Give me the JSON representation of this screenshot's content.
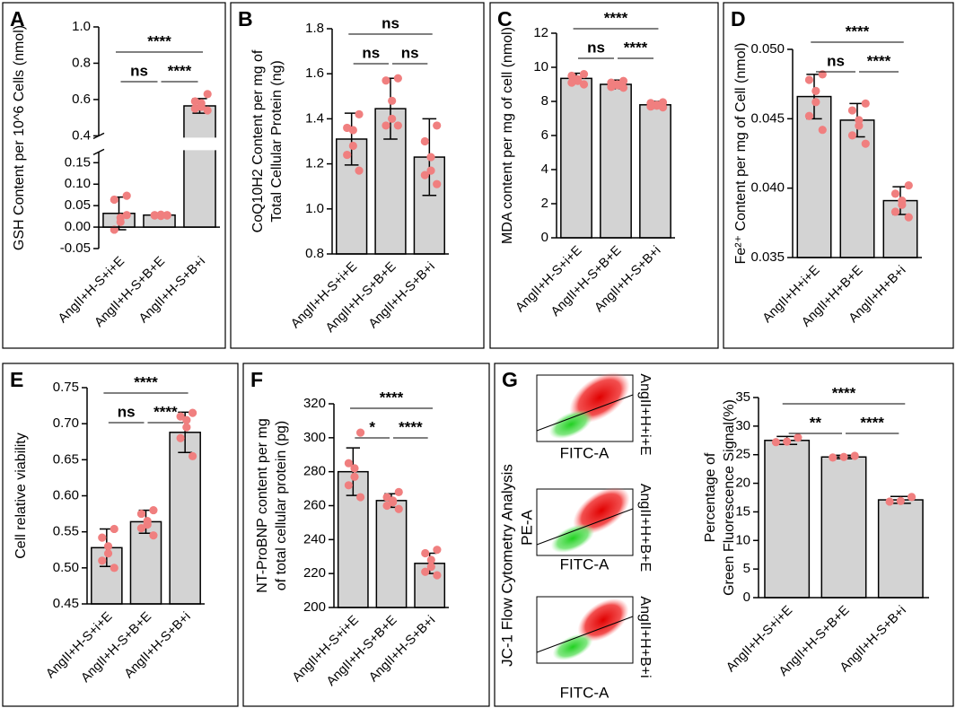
{
  "chart_data": [
    {
      "type": "bar",
      "label": "A",
      "ylabel": "GSH Content per 10^6 Cells (nmol)",
      "categories": [
        "AngII+H-S+i+E",
        "AngII+H-S+B+E",
        "AngII+H-S+B+i"
      ],
      "values": [
        0.032,
        0.028,
        0.565
      ],
      "errors": [
        0.038,
        0.003,
        0.04
      ],
      "points": [
        [
          0.073,
          0.064,
          0.022,
          0.012,
          -0.006,
          0.028
        ],
        [
          0.027,
          0.028,
          0.026,
          0.029,
          0.027,
          0.028
        ],
        [
          0.63,
          0.59,
          0.58,
          0.56,
          0.55,
          0.54
        ]
      ],
      "ylim": [
        -0.05,
        1.0
      ],
      "ybreak": [
        0.175,
        0.4
      ],
      "yticks": [
        -0.05,
        {
          "value": 0,
          "label": "0.00"
        },
        0.05,
        {
          "value": 0.1,
          "label": "0.10"
        },
        0.15,
        0.4,
        0.6,
        0.8,
        {
          "value": 1,
          "label": "1.0"
        }
      ],
      "color": "#d3d3d3",
      "point_color": "#f07f7f",
      "comparisons": [
        {
          "label": "****",
          "groups": [
            0,
            2
          ]
        },
        {
          "label": "ns",
          "groups": [
            0,
            1
          ]
        },
        {
          "label": "****",
          "groups": [
            1,
            2
          ]
        }
      ]
    },
    {
      "type": "bar",
      "label": "B",
      "ylabel": [
        "CoQ10H2 Content per mg of",
        "Total Cellular Protein (ng)"
      ],
      "categories": [
        "AngII+H-S+i+E",
        "AngII+H-S+B+E",
        "AngII+H-S+B+i"
      ],
      "values": [
        1.31,
        1.445,
        1.23
      ],
      "errors": [
        0.115,
        0.135,
        0.17
      ],
      "points": [
        [
          1.42,
          1.36,
          1.35,
          1.28,
          1.24,
          1.17
        ],
        [
          1.58,
          1.57,
          1.48,
          1.4,
          1.37,
          1.37
        ],
        [
          1.37,
          1.3,
          1.23,
          1.17,
          1.15,
          1.11
        ]
      ],
      "ylim": [
        0.8,
        1.8
      ],
      "yticks": [
        0.8,
        {
          "value": 1,
          "label": "1.0"
        },
        1.2,
        1.4,
        1.6,
        1.8
      ],
      "color": "#d3d3d3",
      "point_color": "#f07f7f",
      "comparisons": [
        {
          "label": "ns",
          "groups": [
            0,
            2
          ]
        },
        {
          "label": "ns",
          "groups": [
            0,
            1
          ]
        },
        {
          "label": "ns",
          "groups": [
            1,
            2
          ]
        }
      ]
    },
    {
      "type": "bar",
      "label": "C",
      "ylabel": "MDA content per mg of cell (nmol)",
      "categories": [
        "AngII+H-S+i+E",
        "AngII+H-S+B+E",
        "AngII+H-S+B+i"
      ],
      "values": [
        9.35,
        9.0,
        7.8
      ],
      "errors": [
        0.3,
        0.25,
        0.2
      ],
      "points": [
        [
          9.6,
          9.5,
          9.3,
          9.2,
          9.1,
          9.0
        ],
        [
          9.2,
          9.1,
          9.0,
          8.95,
          8.85,
          8.8
        ],
        [
          7.95,
          7.9,
          7.8,
          7.75,
          7.7,
          7.65
        ]
      ],
      "ylim": [
        0,
        12
      ],
      "yticks": [
        0,
        2,
        4,
        6,
        8,
        10,
        12
      ],
      "color": "#d3d3d3",
      "point_color": "#f07f7f",
      "comparisons": [
        {
          "label": "****",
          "groups": [
            0,
            2
          ]
        },
        {
          "label": "ns",
          "groups": [
            0,
            1
          ]
        },
        {
          "label": "****",
          "groups": [
            1,
            2
          ]
        }
      ]
    },
    {
      "type": "bar",
      "label": "D",
      "ylabel": "Fe²⁺ Content per mg of Cell (nmol)",
      "categories": [
        "AngII+H+i+E",
        "AngII+H+B+E",
        "AngII+H+B+i"
      ],
      "values": [
        0.0466,
        0.0449,
        0.0391
      ],
      "errors": [
        0.0016,
        0.0012,
        0.001
      ],
      "points": [
        [
          0.0482,
          0.0478,
          0.047,
          0.0462,
          0.0452,
          0.0442
        ],
        [
          0.0461,
          0.0456,
          0.0449,
          0.0445,
          0.0438,
          0.0432
        ],
        [
          0.0402,
          0.0396,
          0.0391,
          0.0388,
          0.0383,
          0.0379
        ]
      ],
      "ylim": [
        0.035,
        0.05
      ],
      "yticks": [
        0.035,
        {
          "value": 0.04,
          "label": "0.040"
        },
        0.045,
        {
          "value": 0.05,
          "label": "0.050"
        }
      ],
      "color": "#d3d3d3",
      "point_color": "#f07f7f",
      "comparisons": [
        {
          "label": "****",
          "groups": [
            0,
            2
          ]
        },
        {
          "label": "ns",
          "groups": [
            0,
            1
          ]
        },
        {
          "label": "****",
          "groups": [
            1,
            2
          ]
        }
      ]
    },
    {
      "type": "bar",
      "label": "E",
      "ylabel": "Cell relative viability",
      "categories": [
        "AngII+H-S+i+E",
        "AngII+H-S+B+E",
        "AngII+H-S+B+i"
      ],
      "values": [
        0.528,
        0.564,
        0.688
      ],
      "errors": [
        0.026,
        0.016,
        0.028
      ],
      "points": [
        [
          0.554,
          0.542,
          0.53,
          0.52,
          0.51,
          0.5
        ],
        [
          0.58,
          0.575,
          0.565,
          0.56,
          0.555,
          0.545
        ],
        [
          0.715,
          0.71,
          0.705,
          0.695,
          0.68,
          0.655
        ]
      ],
      "ylim": [
        0.45,
        0.75
      ],
      "yticks": [
        0.45,
        {
          "value": 0.5,
          "label": "0.50"
        },
        0.55,
        {
          "value": 0.6,
          "label": "0.60"
        },
        0.65,
        {
          "value": 0.7,
          "label": "0.70"
        },
        0.75
      ],
      "color": "#d3d3d3",
      "point_color": "#f07f7f",
      "comparisons": [
        {
          "label": "****",
          "groups": [
            0,
            2
          ]
        },
        {
          "label": "ns",
          "groups": [
            0,
            1
          ]
        },
        {
          "label": "****",
          "groups": [
            1,
            2
          ]
        }
      ]
    },
    {
      "type": "bar",
      "label": "F",
      "ylabel": [
        "NT-ProBNP content per mg",
        "of total cellular protein (pg)"
      ],
      "categories": [
        "AngII+H-S+i+E",
        "AngII+H-S+B+E",
        "AngII+H-S+B+i"
      ],
      "values": [
        280,
        263,
        226
      ],
      "errors": [
        14,
        4,
        6
      ],
      "points": [
        [
          303,
          285,
          282,
          277,
          272,
          265
        ],
        [
          268,
          265,
          263,
          262,
          260,
          258
        ],
        [
          234,
          232,
          228,
          224,
          221,
          219
        ]
      ],
      "ylim": [
        200,
        320
      ],
      "yticks": [
        200,
        220,
        240,
        260,
        280,
        300,
        320
      ],
      "color": "#d3d3d3",
      "point_color": "#f07f7f",
      "comparisons": [
        {
          "label": "****",
          "groups": [
            0,
            2
          ]
        },
        {
          "label": "*",
          "groups": [
            0,
            1
          ]
        },
        {
          "label": "****",
          "groups": [
            1,
            2
          ]
        }
      ]
    },
    {
      "type": "bar",
      "label": "G",
      "ylabel": [
        "Percentage of",
        "Green Fluorescence Signal(%)"
      ],
      "categories": [
        "AngII+H-S+i+E",
        "AngII+H-S+B+E",
        "AngII+H-S+B+i"
      ],
      "values": [
        27.5,
        24.6,
        17.1
      ],
      "errors": [
        0.7,
        0.3,
        0.6
      ],
      "points": [
        [
          28.0,
          27.3,
          27.2
        ],
        [
          24.8,
          24.6,
          24.5
        ],
        [
          17.6,
          16.9,
          16.8
        ]
      ],
      "ylim": [
        0,
        35
      ],
      "yticks": [
        0,
        5,
        10,
        15,
        20,
        25,
        30,
        35
      ],
      "color": "#d3d3d3",
      "point_color": "#f07f7f",
      "comparisons": [
        {
          "label": "****",
          "groups": [
            0,
            2
          ]
        },
        {
          "label": "**",
          "groups": [
            0,
            1
          ]
        },
        {
          "label": "****",
          "groups": [
            1,
            2
          ]
        }
      ]
    }
  ],
  "flow_cytometry": {
    "title": "JC-1 Flow Cytometry Analysis",
    "y_label": "PE-A",
    "x_labels": [
      "FITC-A",
      "FITC-A",
      "FITC-A"
    ],
    "samples": [
      "AngII+H+i+E",
      "AngII+H+B+E",
      "AngII+H+B+i"
    ]
  }
}
